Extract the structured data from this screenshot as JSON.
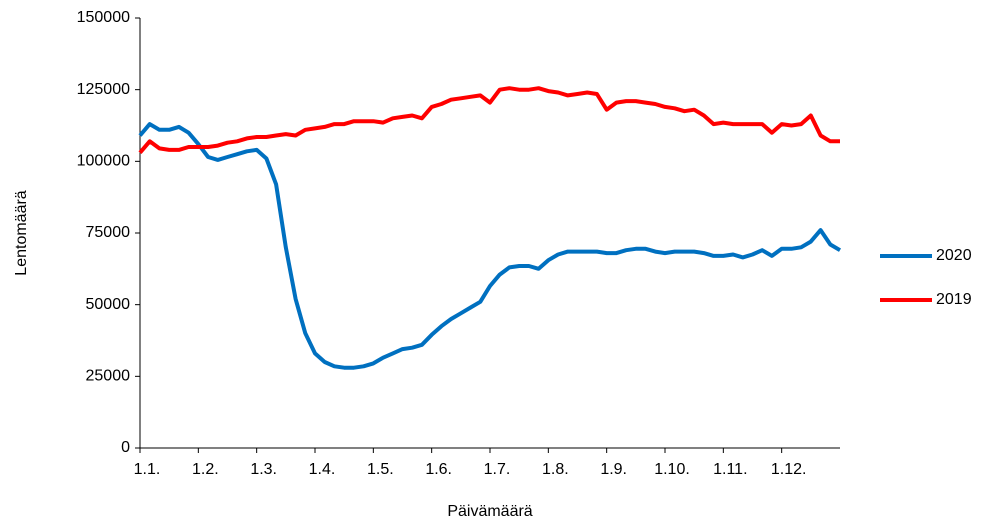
{
  "chart_data": {
    "type": "line",
    "x_label": "Päivämäärä",
    "y_label": "Lentomäärä",
    "categories": [
      "1.1.",
      null,
      null,
      null,
      null,
      null,
      "1.2.",
      null,
      null,
      null,
      null,
      null,
      "1.3.",
      null,
      null,
      null,
      null,
      null,
      "1.4.",
      null,
      null,
      null,
      null,
      null,
      "1.5.",
      null,
      null,
      null,
      null,
      null,
      "1.6.",
      null,
      null,
      null,
      null,
      null,
      "1.7.",
      null,
      null,
      null,
      null,
      null,
      "1.8.",
      null,
      null,
      null,
      null,
      null,
      "1.9.",
      null,
      null,
      null,
      null,
      null,
      "1.10.",
      null,
      null,
      null,
      null,
      null,
      "1.11.",
      null,
      null,
      null,
      null,
      null,
      "1.12.",
      null,
      null,
      null,
      null,
      null,
      null
    ],
    "series": [
      {
        "name": "2020",
        "color": "#0070c0",
        "values": [
          109000,
          113000,
          111000,
          111000,
          112000,
          110000,
          106000,
          101500,
          100500,
          101500,
          102500,
          103500,
          104000,
          101000,
          92000,
          70000,
          52000,
          40000,
          33000,
          30000,
          28500,
          28000,
          28000,
          28500,
          29500,
          31500,
          33000,
          34500,
          35000,
          36000,
          39500,
          42500,
          45000,
          47000,
          49000,
          51000,
          56500,
          60500,
          63000,
          63500,
          63500,
          62500,
          65500,
          67500,
          68500,
          68500,
          68500,
          68500,
          68000,
          68000,
          69000,
          69500,
          69500,
          68500,
          68000,
          68500,
          68500,
          68500,
          68000,
          67000,
          67000,
          67500,
          66500,
          67500,
          69000,
          67000,
          69500,
          69500,
          70000,
          72000,
          76000,
          71000,
          69000
        ]
      },
      {
        "name": "2019",
        "color": "#ff0000",
        "values": [
          103000,
          107000,
          104500,
          104000,
          104000,
          105000,
          105000,
          105000,
          105500,
          106500,
          107000,
          108000,
          108500,
          108500,
          109000,
          109500,
          109000,
          111000,
          111500,
          112000,
          113000,
          113000,
          114000,
          114000,
          114000,
          113500,
          115000,
          115500,
          116000,
          115000,
          119000,
          120000,
          121500,
          122000,
          122500,
          123000,
          120500,
          125000,
          125500,
          125000,
          125000,
          125500,
          124500,
          124000,
          123000,
          123500,
          124000,
          123500,
          118000,
          120500,
          121000,
          121000,
          120500,
          120000,
          119000,
          118500,
          117500,
          118000,
          116000,
          113000,
          113500,
          113000,
          113000,
          113000,
          113000,
          110000,
          113000,
          112500,
          113000,
          116000,
          109000,
          107000,
          107000
        ]
      }
    ],
    "ylim": [
      0,
      150000
    ],
    "yticks": [
      0,
      25000,
      50000,
      75000,
      100000,
      125000,
      150000
    ],
    "grid": false,
    "legend": "right"
  }
}
